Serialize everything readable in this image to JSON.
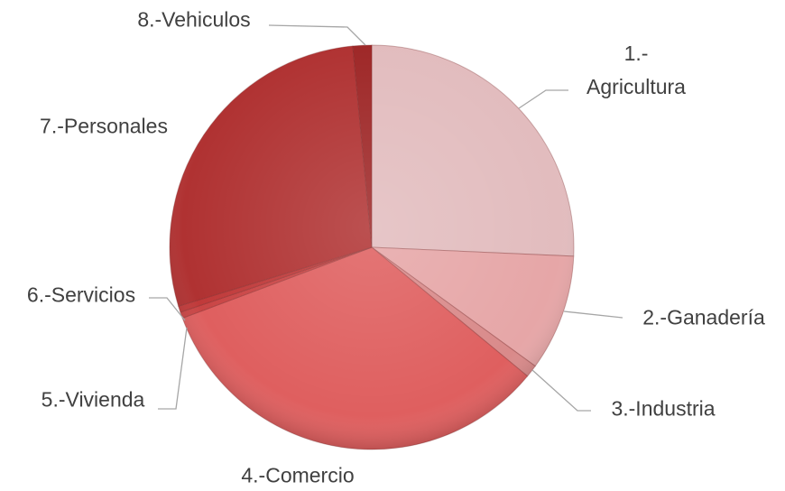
{
  "chart_data": {
    "type": "pie",
    "categories": [
      "1.- Agricultura",
      "2.-Ganadería",
      "3.-Industria",
      "4.-Comercio",
      "5.-Vivienda",
      "6.-Servicios",
      "7.-Personales",
      "8.-Vehiculos"
    ],
    "values": [
      25.7,
      9.3,
      1.0,
      33.3,
      0.5,
      0.5,
      28.2,
      1.5
    ],
    "colors": [
      "#e2bcbe",
      "#e6a6a7",
      "#d98a8a",
      "#df5f5f",
      "#c94545",
      "#c03a3a",
      "#b03232",
      "#9e2727"
    ]
  }
}
